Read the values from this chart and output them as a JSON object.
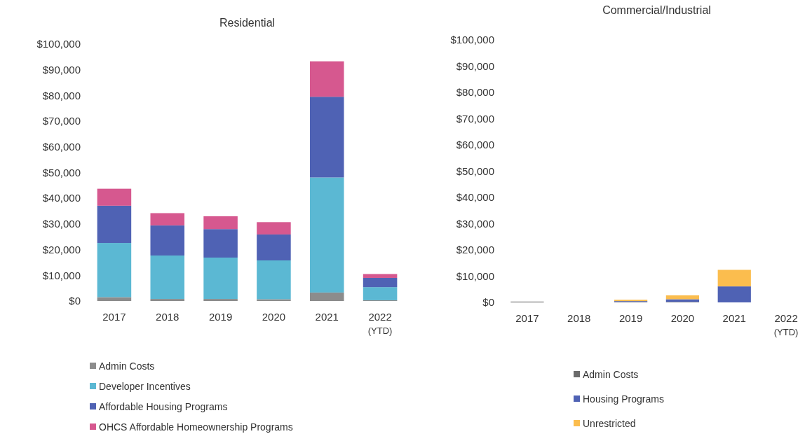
{
  "chart_data": [
    {
      "type": "bar",
      "title": "Residential",
      "stacked": true,
      "legend": "bottom",
      "categories": [
        "2017",
        "2018",
        "2019",
        "2020",
        "2021",
        "2022 (YTD)"
      ],
      "ylim": [
        0,
        100000
      ],
      "yticks": [
        {
          "value": 0,
          "label": "$0"
        },
        {
          "value": 10000,
          "label": "$10,000"
        },
        {
          "value": 20000,
          "label": "$20,000"
        },
        {
          "value": 30000,
          "label": "$30,000"
        },
        {
          "value": 40000,
          "label": "$40,000"
        },
        {
          "value": 50000,
          "label": "$50,000"
        },
        {
          "value": 60000,
          "label": "$60,000"
        },
        {
          "value": 70000,
          "label": "$70,000"
        },
        {
          "value": 80000,
          "label": "$80,000"
        },
        {
          "value": 90000,
          "label": "$90,000"
        },
        {
          "value": 100000,
          "label": "$100,000"
        }
      ],
      "series": [
        {
          "name": "Admin Costs",
          "color": "#8c8c8c",
          "values": [
            1500,
            800,
            800,
            700,
            3300,
            300
          ]
        },
        {
          "name": "Developer Incentives",
          "color": "#5bb8d3",
          "values": [
            21100,
            16900,
            16100,
            15100,
            44800,
            5100
          ]
        },
        {
          "name": "Affordable Housing Programs",
          "color": "#4f62b4",
          "values": [
            14500,
            11700,
            11100,
            10100,
            31400,
            3600
          ]
        },
        {
          "name": "OHCS Affordable Homeownership Programs",
          "color": "#d6588f",
          "values": [
            6600,
            4800,
            5000,
            4800,
            13800,
            1500
          ]
        }
      ]
    },
    {
      "type": "bar",
      "title": "Commercial/Industrial",
      "stacked": true,
      "legend": "bottom",
      "categories": [
        "2017",
        "2018",
        "2019",
        "2020",
        "2021",
        "2022 (YTD)"
      ],
      "ylim": [
        0,
        100000
      ],
      "yticks": [
        {
          "value": 0,
          "label": "$0"
        },
        {
          "value": 10000,
          "label": "$10,000"
        },
        {
          "value": 20000,
          "label": "$20,000"
        },
        {
          "value": 30000,
          "label": "$30,000"
        },
        {
          "value": 40000,
          "label": "$40,000"
        },
        {
          "value": 50000,
          "label": "$50,000"
        },
        {
          "value": 60000,
          "label": "$60,000"
        },
        {
          "value": 70000,
          "label": "$70,000"
        },
        {
          "value": 80000,
          "label": "$80,000"
        },
        {
          "value": 90000,
          "label": "$90,000"
        },
        {
          "value": 100000,
          "label": "$100,000"
        }
      ],
      "series": [
        {
          "name": "Admin Costs",
          "color": "#6b6b6b",
          "values": [
            300,
            0,
            200,
            200,
            0,
            0
          ]
        },
        {
          "name": "Housing Programs",
          "color": "#4f62b4",
          "values": [
            0,
            0,
            300,
            1000,
            6100,
            0
          ]
        },
        {
          "name": "Unrestricted",
          "color": "#fbbd4e",
          "values": [
            0,
            0,
            500,
            1500,
            6300,
            0
          ]
        }
      ]
    }
  ]
}
